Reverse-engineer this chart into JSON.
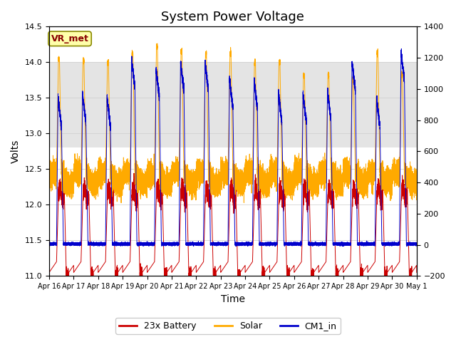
{
  "title": "System Power Voltage",
  "xlabel": "Time",
  "ylabel": "Volts",
  "xlim_days": 15,
  "ylim_left": [
    11.0,
    14.5
  ],
  "ylim_right": [
    -200,
    1400
  ],
  "yticks_left": [
    11.0,
    11.5,
    12.0,
    12.5,
    13.0,
    13.5,
    14.0,
    14.5
  ],
  "yticks_right": [
    -200,
    0,
    200,
    400,
    600,
    800,
    1000,
    1200,
    1400
  ],
  "xtick_labels": [
    "Apr 16",
    "Apr 17",
    "Apr 18",
    "Apr 19",
    "Apr 20",
    "Apr 21",
    "Apr 22",
    "Apr 23",
    "Apr 24",
    "Apr 25",
    "Apr 26",
    "Apr 27",
    "Apr 28",
    "Apr 29",
    "Apr 30",
    "May 1"
  ],
  "shaded_region": [
    12.8,
    14.0
  ],
  "shaded_color": "#d3d3d3",
  "legend_labels": [
    "23x Battery",
    "Solar",
    "CM1_in"
  ],
  "legend_colors": [
    "#cc0000",
    "#ffaa00",
    "#0000cc"
  ],
  "vr_met_label": "VR_met",
  "vr_met_bg": "#ffffaa",
  "vr_met_border": "#888800",
  "vr_met_text_color": "#880000",
  "background_color": "#ffffff",
  "grid_color": "#cccccc",
  "num_days": 15,
  "title_fontsize": 13,
  "label_fontsize": 10,
  "battery_night_low": 11.05,
  "battery_day_plateau": 12.2,
  "solar_night_base": 12.5,
  "cm1_night": 11.45,
  "cm1_peaks": [
    13.5,
    13.55,
    13.5,
    14.05,
    13.9,
    14.0,
    14.0,
    13.75,
    13.75,
    13.55,
    13.55,
    13.6,
    14.0,
    13.5,
    14.15
  ],
  "solar_peaks": [
    14.05,
    14.02,
    14.0,
    14.12,
    14.22,
    14.15,
    14.12,
    14.13,
    14.0,
    14.0,
    13.82,
    13.82,
    13.75,
    14.12,
    13.82
  ]
}
